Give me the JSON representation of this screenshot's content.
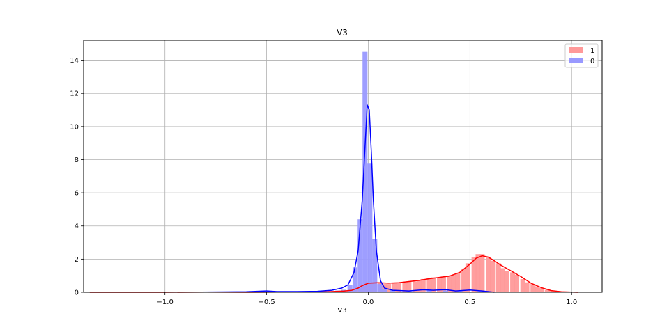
{
  "chart_data": {
    "type": "area",
    "title": "V3",
    "xlabel": "V3",
    "ylabel": "",
    "xlim": [
      -1.4,
      1.15
    ],
    "ylim": [
      0,
      15.2
    ],
    "xticks": [
      -1.0,
      -0.5,
      0.0,
      0.5,
      1.0
    ],
    "xtick_labels": [
      "−1.0",
      "−0.5",
      "0.0",
      "0.5",
      "1.0"
    ],
    "yticks": [
      0,
      2,
      4,
      6,
      8,
      10,
      12,
      14
    ],
    "ytick_labels": [
      "0",
      "2",
      "4",
      "6",
      "8",
      "10",
      "12",
      "14"
    ],
    "grid": true,
    "legend_position": "top-right",
    "series": [
      {
        "name": "1",
        "color": "#ff0000",
        "fill": "#ff9999",
        "hist_bin_width": 0.0243,
        "hist": [
          [
            -1.37,
            0.02
          ],
          [
            -1.35,
            0.02
          ],
          [
            -0.85,
            0.02
          ],
          [
            -0.45,
            0.02
          ],
          [
            -0.3,
            0.02
          ],
          [
            -0.15,
            0.05
          ],
          [
            -0.11,
            0.08
          ],
          [
            -0.09,
            0.12
          ],
          [
            -0.07,
            0.2
          ],
          [
            -0.05,
            0.3
          ],
          [
            -0.03,
            0.45
          ],
          [
            -0.01,
            0.55
          ],
          [
            0.01,
            0.55
          ],
          [
            0.03,
            0.6
          ],
          [
            0.06,
            0.55
          ],
          [
            0.08,
            0.5
          ],
          [
            0.1,
            0.5
          ],
          [
            0.13,
            0.55
          ],
          [
            0.15,
            0.55
          ],
          [
            0.18,
            0.6
          ],
          [
            0.2,
            0.65
          ],
          [
            0.23,
            0.65
          ],
          [
            0.25,
            0.7
          ],
          [
            0.27,
            0.8
          ],
          [
            0.3,
            0.85
          ],
          [
            0.32,
            0.9
          ],
          [
            0.35,
            0.9
          ],
          [
            0.37,
            0.95
          ],
          [
            0.4,
            1.0
          ],
          [
            0.42,
            1.05
          ],
          [
            0.44,
            1.15
          ],
          [
            0.47,
            1.4
          ],
          [
            0.49,
            1.75
          ],
          [
            0.52,
            2.1
          ],
          [
            0.54,
            2.3
          ],
          [
            0.56,
            2.3
          ],
          [
            0.59,
            2.1
          ],
          [
            0.61,
            1.9
          ],
          [
            0.64,
            1.75
          ],
          [
            0.66,
            1.45
          ],
          [
            0.68,
            1.3
          ],
          [
            0.71,
            1.2
          ],
          [
            0.73,
            1.05
          ],
          [
            0.76,
            0.8
          ],
          [
            0.78,
            0.6
          ],
          [
            0.81,
            0.5
          ],
          [
            0.83,
            0.35
          ],
          [
            0.85,
            0.25
          ],
          [
            0.88,
            0.15
          ],
          [
            0.9,
            0.1
          ],
          [
            0.93,
            0.06
          ],
          [
            0.97,
            0.03
          ],
          [
            1.01,
            0.03
          ]
        ],
        "kde": [
          [
            -1.37,
            0.0
          ],
          [
            -1.2,
            0.0
          ],
          [
            -1.0,
            0.0
          ],
          [
            -0.8,
            0.01
          ],
          [
            -0.6,
            0.0
          ],
          [
            -0.45,
            0.01
          ],
          [
            -0.3,
            0.02
          ],
          [
            -0.2,
            0.03
          ],
          [
            -0.12,
            0.07
          ],
          [
            -0.08,
            0.12
          ],
          [
            -0.05,
            0.25
          ],
          [
            -0.03,
            0.4
          ],
          [
            0.0,
            0.55
          ],
          [
            0.05,
            0.58
          ],
          [
            0.1,
            0.55
          ],
          [
            0.15,
            0.58
          ],
          [
            0.2,
            0.65
          ],
          [
            0.25,
            0.72
          ],
          [
            0.3,
            0.82
          ],
          [
            0.35,
            0.9
          ],
          [
            0.4,
            0.98
          ],
          [
            0.45,
            1.2
          ],
          [
            0.5,
            1.7
          ],
          [
            0.53,
            2.05
          ],
          [
            0.56,
            2.2
          ],
          [
            0.59,
            2.12
          ],
          [
            0.62,
            1.9
          ],
          [
            0.65,
            1.65
          ],
          [
            0.7,
            1.3
          ],
          [
            0.75,
            0.95
          ],
          [
            0.8,
            0.55
          ],
          [
            0.85,
            0.28
          ],
          [
            0.9,
            0.1
          ],
          [
            0.95,
            0.03
          ],
          [
            1.0,
            0.01
          ],
          [
            1.03,
            0.0
          ]
        ]
      },
      {
        "name": "0",
        "color": "#0000ff",
        "fill": "#9999ff",
        "hist_bin_width": 0.0243,
        "hist": [
          [
            -0.8,
            0.03
          ],
          [
            -0.5,
            0.05
          ],
          [
            -0.25,
            0.05
          ],
          [
            -0.15,
            0.1
          ],
          [
            -0.12,
            0.15
          ],
          [
            -0.09,
            0.45
          ],
          [
            -0.065,
            1.5
          ],
          [
            -0.04,
            4.4
          ],
          [
            -0.016,
            14.5
          ],
          [
            0.008,
            7.8
          ],
          [
            0.032,
            3.2
          ],
          [
            0.057,
            0.5
          ],
          [
            0.08,
            0.2
          ],
          [
            0.12,
            0.12
          ],
          [
            0.2,
            0.1
          ],
          [
            0.3,
            0.15
          ],
          [
            0.38,
            0.1
          ],
          [
            0.45,
            0.1
          ],
          [
            0.55,
            0.08
          ]
        ],
        "kde": [
          [
            -0.82,
            0.01
          ],
          [
            -0.7,
            0.02
          ],
          [
            -0.6,
            0.03
          ],
          [
            -0.5,
            0.08
          ],
          [
            -0.45,
            0.04
          ],
          [
            -0.35,
            0.04
          ],
          [
            -0.25,
            0.06
          ],
          [
            -0.18,
            0.12
          ],
          [
            -0.13,
            0.25
          ],
          [
            -0.1,
            0.45
          ],
          [
            -0.07,
            1.2
          ],
          [
            -0.05,
            2.5
          ],
          [
            -0.03,
            5.5
          ],
          [
            -0.015,
            9.0
          ],
          [
            -0.005,
            11.3
          ],
          [
            0.005,
            11.0
          ],
          [
            0.015,
            8.5
          ],
          [
            0.025,
            5.5
          ],
          [
            0.04,
            2.5
          ],
          [
            0.06,
            0.7
          ],
          [
            0.08,
            0.25
          ],
          [
            0.12,
            0.12
          ],
          [
            0.2,
            0.08
          ],
          [
            0.27,
            0.15
          ],
          [
            0.32,
            0.12
          ],
          [
            0.38,
            0.16
          ],
          [
            0.43,
            0.08
          ],
          [
            0.5,
            0.14
          ],
          [
            0.56,
            0.08
          ],
          [
            0.62,
            0.0
          ]
        ]
      }
    ]
  }
}
